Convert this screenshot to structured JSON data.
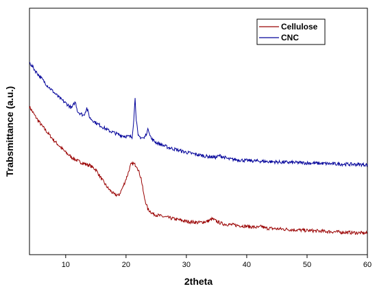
{
  "chart_data": {
    "type": "line",
    "xlabel": "2theta",
    "ylabel": "Trabsmittance (a.u.)",
    "xlim": [
      4,
      60
    ],
    "ylim": [
      0,
      100
    ],
    "x_ticks": [
      10,
      20,
      30,
      40,
      50,
      60
    ],
    "y_tick_labels": false,
    "legend": {
      "position": "top-right",
      "box": true
    },
    "series": [
      {
        "name": "Cellulose",
        "color": "#990000",
        "points": [
          [
            4,
            60
          ],
          [
            5,
            56
          ],
          [
            6,
            52.5
          ],
          [
            7,
            49.5
          ],
          [
            8,
            46.5
          ],
          [
            9,
            44
          ],
          [
            10,
            41.5
          ],
          [
            11,
            39.5
          ],
          [
            12,
            38
          ],
          [
            13,
            37
          ],
          [
            14,
            36.2
          ],
          [
            15,
            34.5
          ],
          [
            16,
            30.5
          ],
          [
            17,
            27
          ],
          [
            18,
            24.5
          ],
          [
            18.8,
            24
          ],
          [
            19.5,
            27.5
          ],
          [
            20.2,
            32
          ],
          [
            20.8,
            36.5
          ],
          [
            21.2,
            37
          ],
          [
            21.8,
            36
          ],
          [
            22.5,
            31
          ],
          [
            23,
            23.5
          ],
          [
            23.6,
            18.5
          ],
          [
            24.5,
            16.5
          ],
          [
            26,
            15.5
          ],
          [
            28,
            14.5
          ],
          [
            30,
            13.5
          ],
          [
            32,
            13
          ],
          [
            33.5,
            13.5
          ],
          [
            34.3,
            14.5
          ],
          [
            35,
            13.5
          ],
          [
            36,
            12.5
          ],
          [
            38,
            12
          ],
          [
            40,
            11.5
          ],
          [
            42,
            11
          ],
          [
            42.5,
            11.5
          ],
          [
            43,
            10.8
          ],
          [
            45,
            10.5
          ],
          [
            50,
            9.8
          ],
          [
            55,
            9.2
          ],
          [
            60,
            8.7
          ]
        ]
      },
      {
        "name": "CNC",
        "color": "#000099",
        "points": [
          [
            4,
            78
          ],
          [
            5,
            74.5
          ],
          [
            6,
            71.5
          ],
          [
            7,
            68.5
          ],
          [
            8,
            66
          ],
          [
            9,
            63.5
          ],
          [
            10,
            61.5
          ],
          [
            11,
            59.5
          ],
          [
            11.6,
            62
          ],
          [
            12,
            58
          ],
          [
            13,
            56.5
          ],
          [
            13.5,
            59.5
          ],
          [
            14,
            55.5
          ],
          [
            15,
            53.5
          ],
          [
            16,
            52
          ],
          [
            17,
            50.5
          ],
          [
            18,
            49.5
          ],
          [
            19,
            48.5
          ],
          [
            20,
            48
          ],
          [
            21,
            47.8
          ],
          [
            21.3,
            55
          ],
          [
            21.5,
            64
          ],
          [
            21.7,
            55
          ],
          [
            22,
            48
          ],
          [
            23,
            47.2
          ],
          [
            23.7,
            51
          ],
          [
            24.2,
            47
          ],
          [
            25,
            45.5
          ],
          [
            27,
            43.5
          ],
          [
            30,
            41.5
          ],
          [
            33,
            40
          ],
          [
            35,
            39.5
          ],
          [
            35.5,
            40.2
          ],
          [
            37,
            38.8
          ],
          [
            40,
            38.2
          ],
          [
            45,
            37.6
          ],
          [
            50,
            37.2
          ],
          [
            55,
            36.8
          ],
          [
            60,
            36.5
          ]
        ]
      }
    ]
  }
}
